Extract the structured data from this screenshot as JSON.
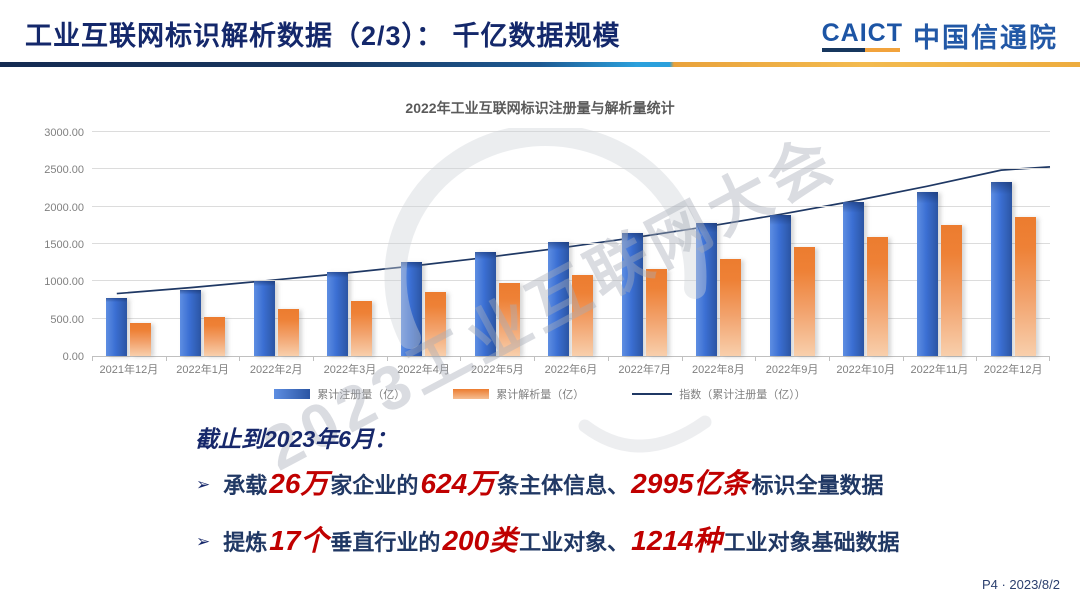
{
  "header": {
    "title": "工业互联网标识解析数据（2/3）： 千亿数据规模",
    "logo_en": "CAICT",
    "logo_cn": "中国信通院"
  },
  "watermark": {
    "text": "2023工业互联网大会"
  },
  "chart_data": {
    "type": "bar",
    "title": "2022年工业互联网标识注册量与解析量统计",
    "categories": [
      "2021年12月",
      "2022年1月",
      "2022年2月",
      "2022年3月",
      "2022年4月",
      "2022年5月",
      "2022年6月",
      "2022年7月",
      "2022年8月",
      "2022年9月",
      "2022年10月",
      "2022年11月",
      "2022年12月"
    ],
    "series": [
      {
        "name": "累计注册量（亿）",
        "type": "bar",
        "color": "#3B6FD3",
        "values": [
          780,
          890,
          1010,
          1130,
          1270,
          1400,
          1530,
          1660,
          1790,
          1900,
          2070,
          2200,
          2340
        ]
      },
      {
        "name": "累计解析量（亿）",
        "type": "bar",
        "color": "#ED7D31",
        "values": [
          450,
          530,
          630,
          740,
          860,
          980,
          1090,
          1170,
          1300,
          1460,
          1600,
          1760,
          1870
        ]
      },
      {
        "name": "指数（累计注册量（亿））",
        "type": "line",
        "color": "#1F3864",
        "values": [
          840,
          920,
          1010,
          1105,
          1210,
          1325,
          1450,
          1590,
          1740,
          1905,
          2085,
          2285,
          2500
        ],
        "edge_extension_value": 2545
      }
    ],
    "ylim": [
      0,
      3000
    ],
    "yticks": [
      {
        "value": 0,
        "label": "0.00"
      },
      {
        "value": 500,
        "label": "500.00"
      },
      {
        "value": 1000,
        "label": "1000.00"
      },
      {
        "value": 1500,
        "label": "1500.00"
      },
      {
        "value": 2000,
        "label": "2000.00"
      },
      {
        "value": 2500,
        "label": "2500.00"
      },
      {
        "value": 3000,
        "label": "3000.00"
      }
    ],
    "grid": true,
    "legend_position": "bottom"
  },
  "stats": {
    "heading": "截止到2023年6月：",
    "bullet_marker": "➢",
    "bullets": [
      {
        "segments": [
          {
            "text": "承载",
            "style": "navy"
          },
          {
            "text": "26万",
            "style": "red"
          },
          {
            "text": "家企业的",
            "style": "navy"
          },
          {
            "text": "624万",
            "style": "red"
          },
          {
            "text": "条主体信息、",
            "style": "navy"
          },
          {
            "text": "2995亿条",
            "style": "red"
          },
          {
            "text": "标识全量数据",
            "style": "navy"
          }
        ]
      },
      {
        "segments": [
          {
            "text": "提炼",
            "style": "navy"
          },
          {
            "text": "17个",
            "style": "red"
          },
          {
            "text": "垂直行业的",
            "style": "navy"
          },
          {
            "text": "200类",
            "style": "red"
          },
          {
            "text": "工业对象、",
            "style": "navy"
          },
          {
            "text": "1214种",
            "style": "red"
          },
          {
            "text": "工业对象基础数据",
            "style": "navy"
          }
        ]
      }
    ]
  },
  "footer": {
    "page_label": "P4 · 2023/8/2"
  },
  "colors": {
    "title_navy": "#14286B",
    "text_navy": "#203864",
    "highlight_red": "#C00000",
    "bar_blue": "#3B6FD3",
    "bar_orange": "#ED7D31",
    "trend_navy": "#1F3864",
    "rule_gold": "#F2A33C"
  }
}
